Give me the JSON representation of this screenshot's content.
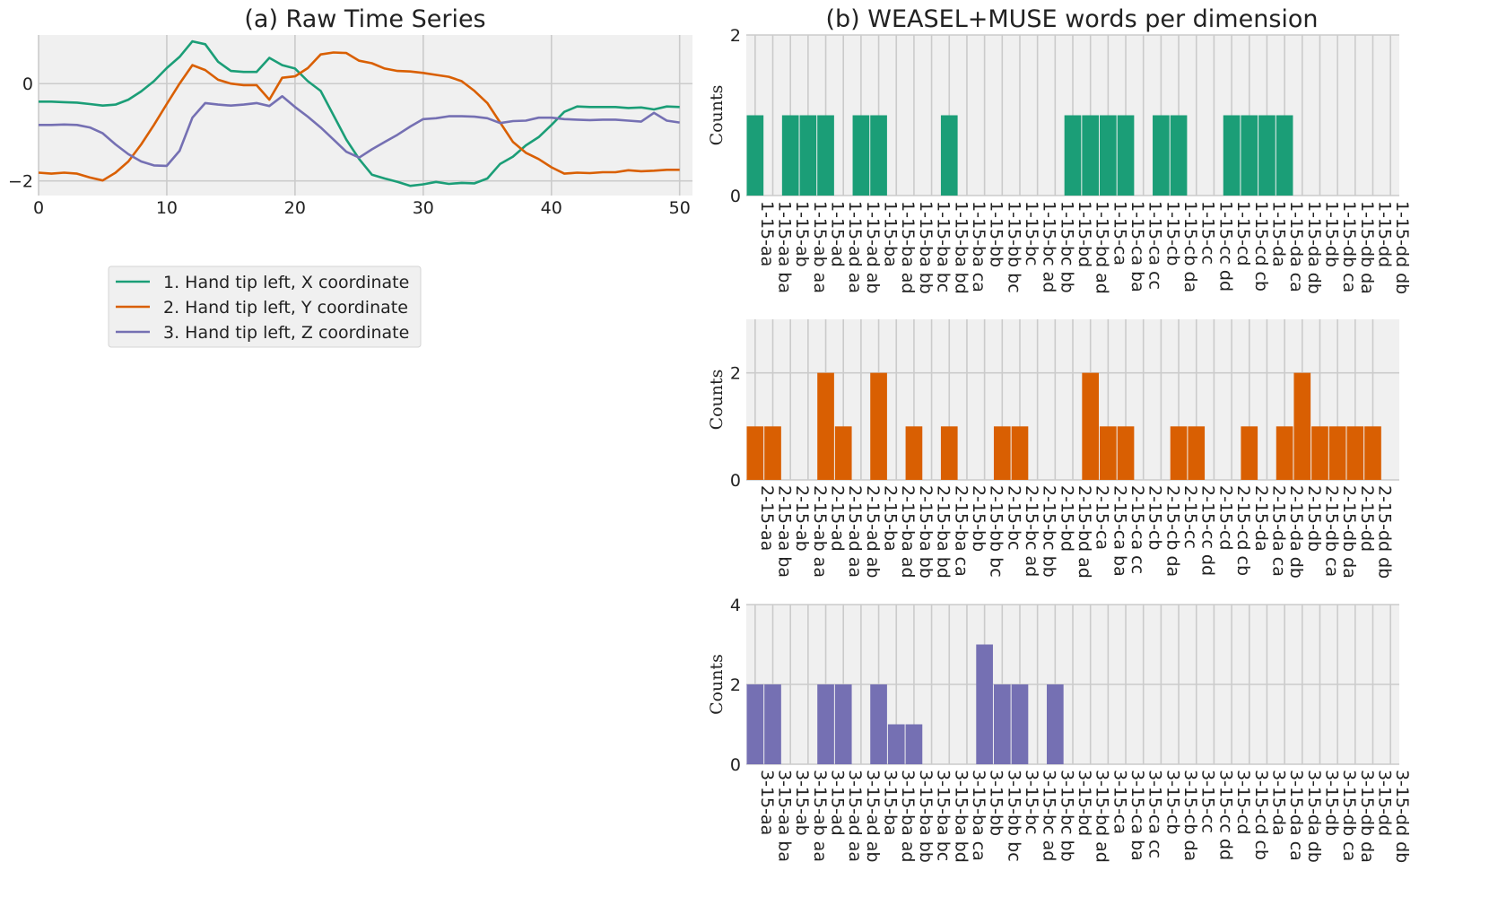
{
  "chart_data": [
    {
      "type": "line",
      "title": "(a) Raw Time Series",
      "xlabel": "",
      "ylabel": "",
      "xlim": [
        0,
        51
      ],
      "ylim": [
        -2.3,
        1.0
      ],
      "xticks": [
        0,
        10,
        20,
        30,
        40,
        50
      ],
      "yticks": [
        -2,
        0
      ],
      "ytick_labels": [
        "−2",
        "0"
      ],
      "grid": true,
      "legend_position": "below-plot",
      "series": [
        {
          "name": "1. Hand tip left, X coordinate",
          "color": "#1b9e77",
          "x": [
            0,
            1,
            2,
            3,
            4,
            5,
            6,
            7,
            8,
            9,
            10,
            11,
            12,
            13,
            14,
            15,
            16,
            17,
            18,
            19,
            20,
            21,
            22,
            23,
            24,
            25,
            26,
            27,
            28,
            29,
            30,
            31,
            32,
            33,
            34,
            35,
            36,
            37,
            38,
            39,
            40,
            41,
            42,
            43,
            44,
            45,
            46,
            47,
            48,
            49,
            50
          ],
          "y": [
            -0.37,
            -0.37,
            -0.38,
            -0.39,
            -0.42,
            -0.45,
            -0.43,
            -0.33,
            -0.16,
            0.05,
            0.32,
            0.55,
            0.87,
            0.81,
            0.45,
            0.26,
            0.24,
            0.24,
            0.53,
            0.38,
            0.31,
            0.05,
            -0.15,
            -0.65,
            -1.15,
            -1.55,
            -1.87,
            -1.95,
            -2.02,
            -2.1,
            -2.07,
            -2.02,
            -2.06,
            -2.04,
            -2.05,
            -1.95,
            -1.65,
            -1.5,
            -1.27,
            -1.1,
            -0.85,
            -0.58,
            -0.47,
            -0.48,
            -0.48,
            -0.48,
            -0.5,
            -0.49,
            -0.53,
            -0.47,
            -0.48
          ]
        },
        {
          "name": "2. Hand tip left, Y coordinate",
          "color": "#d95f02",
          "x": [
            0,
            1,
            2,
            3,
            4,
            5,
            6,
            7,
            8,
            9,
            10,
            11,
            12,
            13,
            14,
            15,
            16,
            17,
            18,
            19,
            20,
            21,
            22,
            23,
            24,
            25,
            26,
            27,
            28,
            29,
            30,
            31,
            32,
            33,
            34,
            35,
            36,
            37,
            38,
            39,
            40,
            41,
            42,
            43,
            44,
            45,
            46,
            47,
            48,
            49,
            50
          ],
          "y": [
            -1.83,
            -1.85,
            -1.83,
            -1.85,
            -1.93,
            -1.99,
            -1.83,
            -1.6,
            -1.25,
            -0.85,
            -0.42,
            0.0,
            0.38,
            0.28,
            0.08,
            0.0,
            -0.03,
            -0.03,
            -0.33,
            0.12,
            0.15,
            0.32,
            0.6,
            0.64,
            0.63,
            0.47,
            0.42,
            0.31,
            0.26,
            0.25,
            0.22,
            0.18,
            0.14,
            0.05,
            -0.15,
            -0.4,
            -0.8,
            -1.2,
            -1.42,
            -1.55,
            -1.72,
            -1.85,
            -1.83,
            -1.84,
            -1.82,
            -1.82,
            -1.78,
            -1.8,
            -1.79,
            -1.77,
            -1.77
          ]
        },
        {
          "name": "3. Hand tip left, Z coordinate",
          "color": "#7570b3",
          "x": [
            0,
            1,
            2,
            3,
            4,
            5,
            6,
            7,
            8,
            9,
            10,
            11,
            12,
            13,
            14,
            15,
            16,
            17,
            18,
            19,
            20,
            21,
            22,
            23,
            24,
            25,
            26,
            27,
            28,
            29,
            30,
            31,
            32,
            33,
            34,
            35,
            36,
            37,
            38,
            39,
            40,
            41,
            42,
            43,
            44,
            45,
            46,
            47,
            48,
            49,
            50
          ],
          "y": [
            -0.85,
            -0.85,
            -0.84,
            -0.85,
            -0.9,
            -1.02,
            -1.25,
            -1.45,
            -1.6,
            -1.68,
            -1.69,
            -1.38,
            -0.7,
            -0.4,
            -0.43,
            -0.45,
            -0.43,
            -0.4,
            -0.46,
            -0.26,
            -0.48,
            -0.68,
            -0.9,
            -1.15,
            -1.4,
            -1.52,
            -1.35,
            -1.2,
            -1.05,
            -0.88,
            -0.73,
            -0.71,
            -0.67,
            -0.67,
            -0.68,
            -0.71,
            -0.81,
            -0.77,
            -0.76,
            -0.7,
            -0.7,
            -0.73,
            -0.74,
            -0.75,
            -0.74,
            -0.74,
            -0.76,
            -0.78,
            -0.6,
            -0.76,
            -0.8
          ]
        }
      ]
    },
    {
      "type": "bar",
      "title": "(b) WEASEL+MUSE words per dimension",
      "ylabel": "Counts",
      "color": "#1b9e77",
      "ylim": [
        0,
        2
      ],
      "yticks": [
        0,
        2
      ],
      "categories": [
        "1-15-aa",
        "1-15-aa ba",
        "1-15-ab",
        "1-15-ab aa",
        "1-15-ad",
        "1-15-ad aa",
        "1-15-ad ab",
        "1-15-ba",
        "1-15-ba ad",
        "1-15-ba bb",
        "1-15-ba bc",
        "1-15-ba bd",
        "1-15-ba ca",
        "1-15-bb",
        "1-15-bb bc",
        "1-15-bc",
        "1-15-bc ad",
        "1-15-bc bb",
        "1-15-bd",
        "1-15-bd ad",
        "1-15-ca",
        "1-15-ca ba",
        "1-15-ca cc",
        "1-15-cb",
        "1-15-cb da",
        "1-15-cc",
        "1-15-cc dd",
        "1-15-cd",
        "1-15-cd cb",
        "1-15-da",
        "1-15-da ca",
        "1-15-da db",
        "1-15-db",
        "1-15-db ca",
        "1-15-db da",
        "1-15-dd",
        "1-15-dd db"
      ],
      "values": [
        1,
        0,
        1,
        1,
        1,
        0,
        1,
        1,
        0,
        0,
        0,
        1,
        0,
        0,
        0,
        0,
        0,
        0,
        1,
        1,
        1,
        1,
        0,
        1,
        1,
        0,
        0,
        1,
        1,
        1,
        1,
        0,
        0,
        0,
        0,
        0,
        0
      ]
    },
    {
      "type": "bar",
      "ylabel": "Counts",
      "color": "#d95f02",
      "ylim": [
        0,
        3
      ],
      "yticks": [
        0,
        2
      ],
      "categories": [
        "2-15-aa",
        "2-15-aa ba",
        "2-15-ab",
        "2-15-ab aa",
        "2-15-ad",
        "2-15-ad aa",
        "2-15-ad ab",
        "2-15-ba",
        "2-15-ba ad",
        "2-15-ba bb",
        "2-15-ba bd",
        "2-15-ba ca",
        "2-15-bb",
        "2-15-bb bc",
        "2-15-bc",
        "2-15-bc ad",
        "2-15-bc bb",
        "2-15-bd",
        "2-15-bd ad",
        "2-15-ca",
        "2-15-ca ba",
        "2-15-ca cc",
        "2-15-cb",
        "2-15-cb da",
        "2-15-cc",
        "2-15-cc dd",
        "2-15-cd",
        "2-15-cd cb",
        "2-15-da",
        "2-15-da ca",
        "2-15-da db",
        "2-15-db",
        "2-15-db ca",
        "2-15-db da",
        "2-15-dd",
        "2-15-dd db"
      ],
      "values": [
        1,
        1,
        0,
        0,
        2,
        1,
        0,
        2,
        0,
        1,
        0,
        1,
        0,
        0,
        1,
        1,
        0,
        0,
        0,
        2,
        1,
        1,
        0,
        0,
        1,
        1,
        0,
        0,
        1,
        0,
        1,
        2,
        1,
        1,
        1,
        1
      ]
    },
    {
      "type": "bar",
      "ylabel": "Counts",
      "color": "#7570b3",
      "ylim": [
        0,
        4
      ],
      "yticks": [
        0,
        2,
        4
      ],
      "categories": [
        "3-15-aa",
        "3-15-aa ba",
        "3-15-ab",
        "3-15-ab aa",
        "3-15-ad",
        "3-15-ad aa",
        "3-15-ad ab",
        "3-15-ba",
        "3-15-ba ad",
        "3-15-ba bb",
        "3-15-ba bc",
        "3-15-ba bd",
        "3-15-ba ca",
        "3-15-bb",
        "3-15-bb bc",
        "3-15-bc",
        "3-15-bc ad",
        "3-15-bc bb",
        "3-15-bd",
        "3-15-bd ad",
        "3-15-ca",
        "3-15-ca ba",
        "3-15-ca cc",
        "3-15-cb",
        "3-15-cb da",
        "3-15-cc",
        "3-15-cc dd",
        "3-15-cd",
        "3-15-cd cb",
        "3-15-da",
        "3-15-da ca",
        "3-15-da db",
        "3-15-db",
        "3-15-db ca",
        "3-15-db da",
        "3-15-dd",
        "3-15-dd db"
      ],
      "values": [
        2,
        2,
        0,
        0,
        2,
        2,
        0,
        2,
        1,
        1,
        0,
        0,
        0,
        3,
        2,
        2,
        0,
        2,
        0,
        0,
        0,
        0,
        0,
        0,
        0,
        0,
        0,
        0,
        0,
        0,
        0,
        0,
        0,
        0,
        0,
        0,
        0
      ]
    }
  ]
}
